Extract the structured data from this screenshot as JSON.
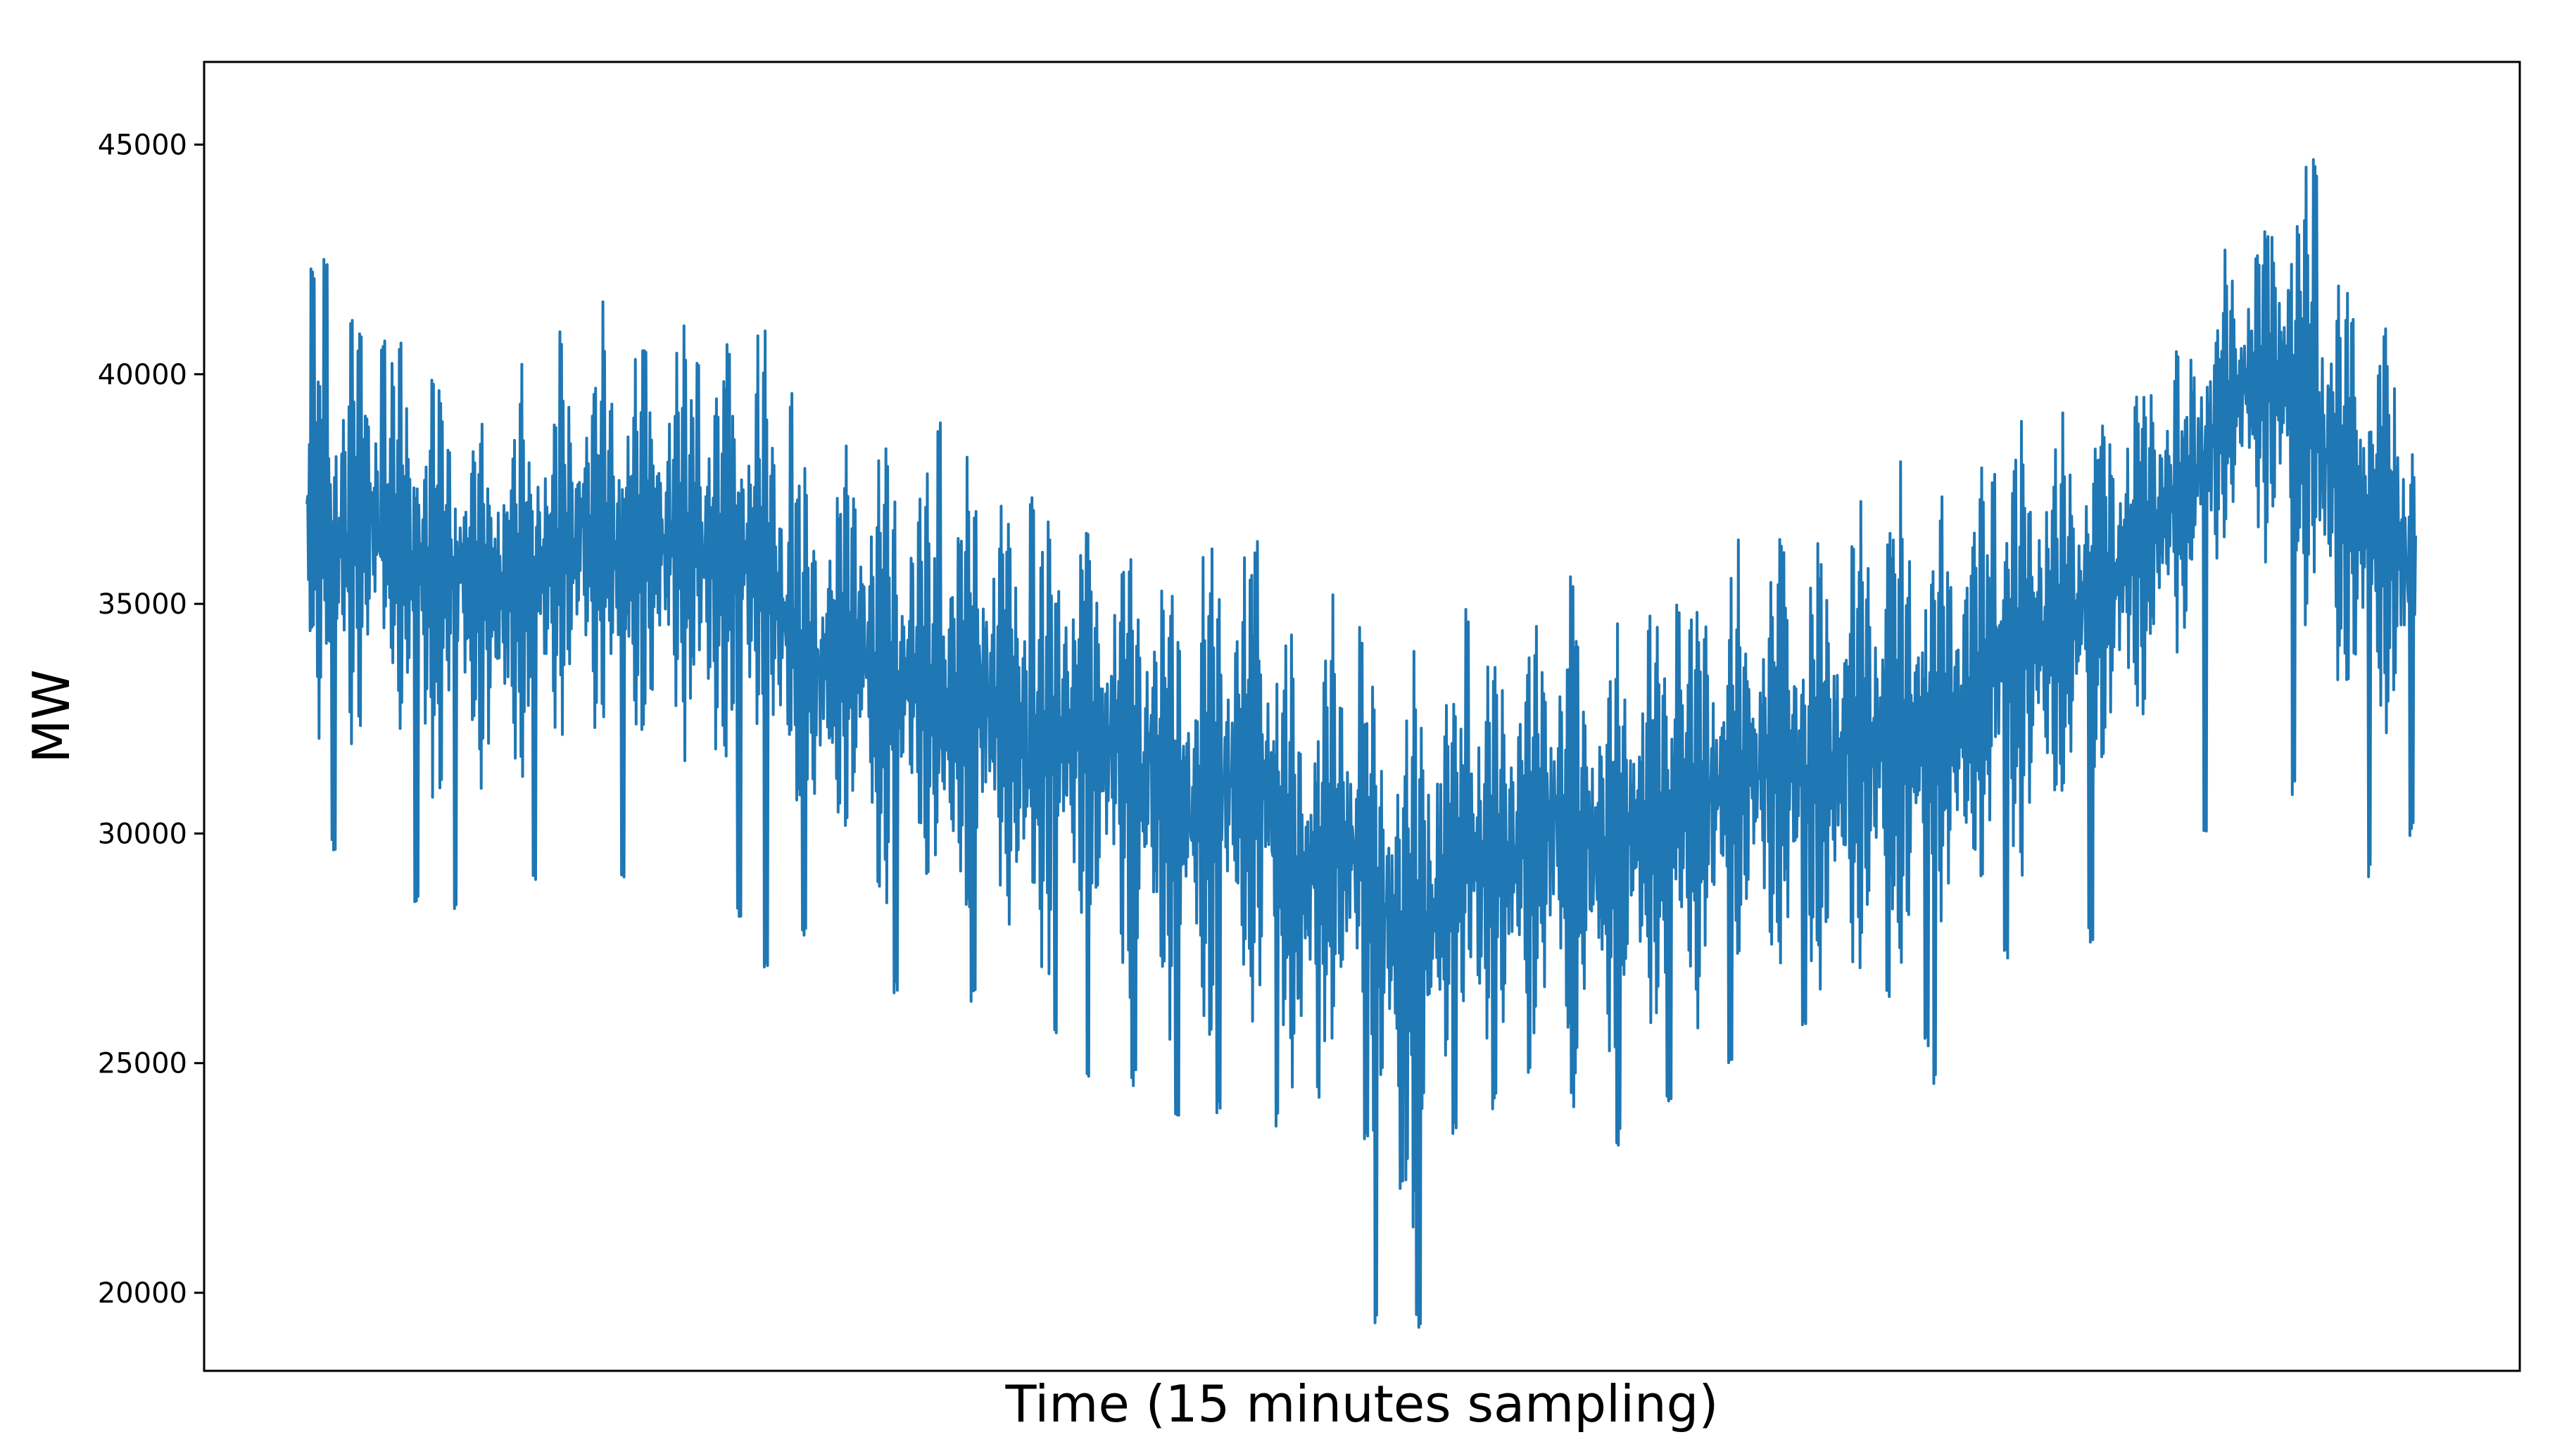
{
  "chart_data": {
    "type": "line",
    "title": "",
    "xlabel": "Time (15 minutes sampling)",
    "ylabel": "MW",
    "ylim": [
      18300,
      46800
    ],
    "yticks": [
      20000,
      25000,
      30000,
      35000,
      40000,
      45000
    ],
    "ytick_labels": [
      "20000",
      "25000",
      "30000",
      "35000",
      "40000",
      "45000"
    ],
    "x_ticks_shown": false,
    "grid": false,
    "legend": "none",
    "line_color": "#1f77b4",
    "series": [
      {
        "sampling": "15 minutes",
        "envelope": {
          "high": [
            39500,
            42000,
            40800,
            40300,
            40500,
            39300,
            39000,
            39600,
            39500,
            40500,
            41000,
            40400,
            40600,
            40600,
            40100,
            40800,
            38300,
            37500,
            38300,
            38800,
            37700,
            36800,
            38300,
            37400,
            36500,
            37300,
            36200,
            36700,
            36300,
            35300,
            36200,
            36200,
            35500,
            33600,
            34600,
            33200,
            32800,
            34300,
            33200,
            33800,
            34400,
            35000,
            34800,
            33900,
            34600,
            35200,
            35200,
            35400,
            36000,
            36300,
            36400,
            36400,
            37100,
            37300,
            37000,
            37400,
            37800,
            38800,
            39000,
            38900,
            39600,
            40200,
            40800,
            41400,
            42700,
            43800,
            44500,
            42800,
            41200,
            40700,
            40100
          ],
          "low": [
            34000,
            30600,
            32800,
            32600,
            30300,
            32300,
            31300,
            31300,
            32000,
            32700,
            32200,
            31900,
            32300,
            31600,
            31400,
            31800,
            29800,
            29500,
            30100,
            28000,
            29400,
            28200,
            28000,
            28600,
            26700,
            27800,
            27400,
            27300,
            26400,
            25800,
            25400,
            26300,
            25500,
            24100,
            25200,
            25000,
            22900,
            21200,
            25200,
            25000,
            24900,
            25500,
            25000,
            25100,
            25000,
            25700,
            26200,
            26400,
            26800,
            26900,
            26300,
            27200,
            27400,
            26500,
            27800,
            28300,
            29000,
            29400,
            29800,
            30700,
            31600,
            32700,
            33900,
            35200,
            36500,
            36500,
            35100,
            33300,
            32800,
            32300,
            31500
          ],
          "spikes_low": [
            [
              0.013,
              29500
            ],
            [
              0.052,
              28400
            ],
            [
              0.07,
              28300
            ],
            [
              0.108,
              28800
            ],
            [
              0.15,
              29000
            ],
            [
              0.205,
              28000
            ],
            [
              0.218,
              26800
            ],
            [
              0.236,
              27700
            ],
            [
              0.279,
              26400
            ],
            [
              0.316,
              26200
            ],
            [
              0.355,
              25400
            ],
            [
              0.37,
              24700
            ],
            [
              0.392,
              24500
            ],
            [
              0.413,
              23500
            ],
            [
              0.432,
              23900
            ],
            [
              0.46,
              23600
            ],
            [
              0.48,
              24100
            ],
            [
              0.502,
              23100
            ],
            [
              0.507,
              19300
            ],
            [
              0.519,
              22100
            ],
            [
              0.527,
              19200
            ],
            [
              0.544,
              23400
            ],
            [
              0.563,
              24000
            ],
            [
              0.58,
              24600
            ],
            [
              0.6,
              24000
            ],
            [
              0.622,
              23200
            ],
            [
              0.646,
              24100
            ],
            [
              0.675,
              24900
            ],
            [
              0.71,
              25700
            ],
            [
              0.75,
              26200
            ],
            [
              0.768,
              25300
            ],
            [
              0.772,
              24400
            ],
            [
              0.806,
              27100
            ],
            [
              0.846,
              27600
            ],
            [
              0.9,
              30000
            ],
            [
              0.942,
              30800
            ],
            [
              0.978,
              29000
            ],
            [
              0.998,
              29900
            ]
          ],
          "spikes_high": [
            [
              0.003,
              42400
            ],
            [
              0.009,
              42700
            ],
            [
              0.025,
              40900
            ],
            [
              0.036,
              40800
            ],
            [
              0.12,
              41000
            ],
            [
              0.16,
              40800
            ],
            [
              0.185,
              40500
            ],
            [
              0.2,
              40700
            ],
            [
              0.23,
              39600
            ],
            [
              0.3,
              39100
            ],
            [
              0.344,
              37400
            ],
            [
              0.37,
              36900
            ],
            [
              0.45,
              36400
            ],
            [
              0.5,
              34500
            ],
            [
              0.55,
              35000
            ],
            [
              0.6,
              35600
            ],
            [
              0.65,
              35200
            ],
            [
              0.7,
              36500
            ],
            [
              0.75,
              36600
            ],
            [
              0.8,
              38000
            ],
            [
              0.85,
              38500
            ],
            [
              0.89,
              39000
            ],
            [
              0.93,
              43200
            ],
            [
              0.952,
              44700
            ],
            [
              0.97,
              41500
            ],
            [
              0.985,
              41200
            ]
          ]
        }
      }
    ]
  }
}
